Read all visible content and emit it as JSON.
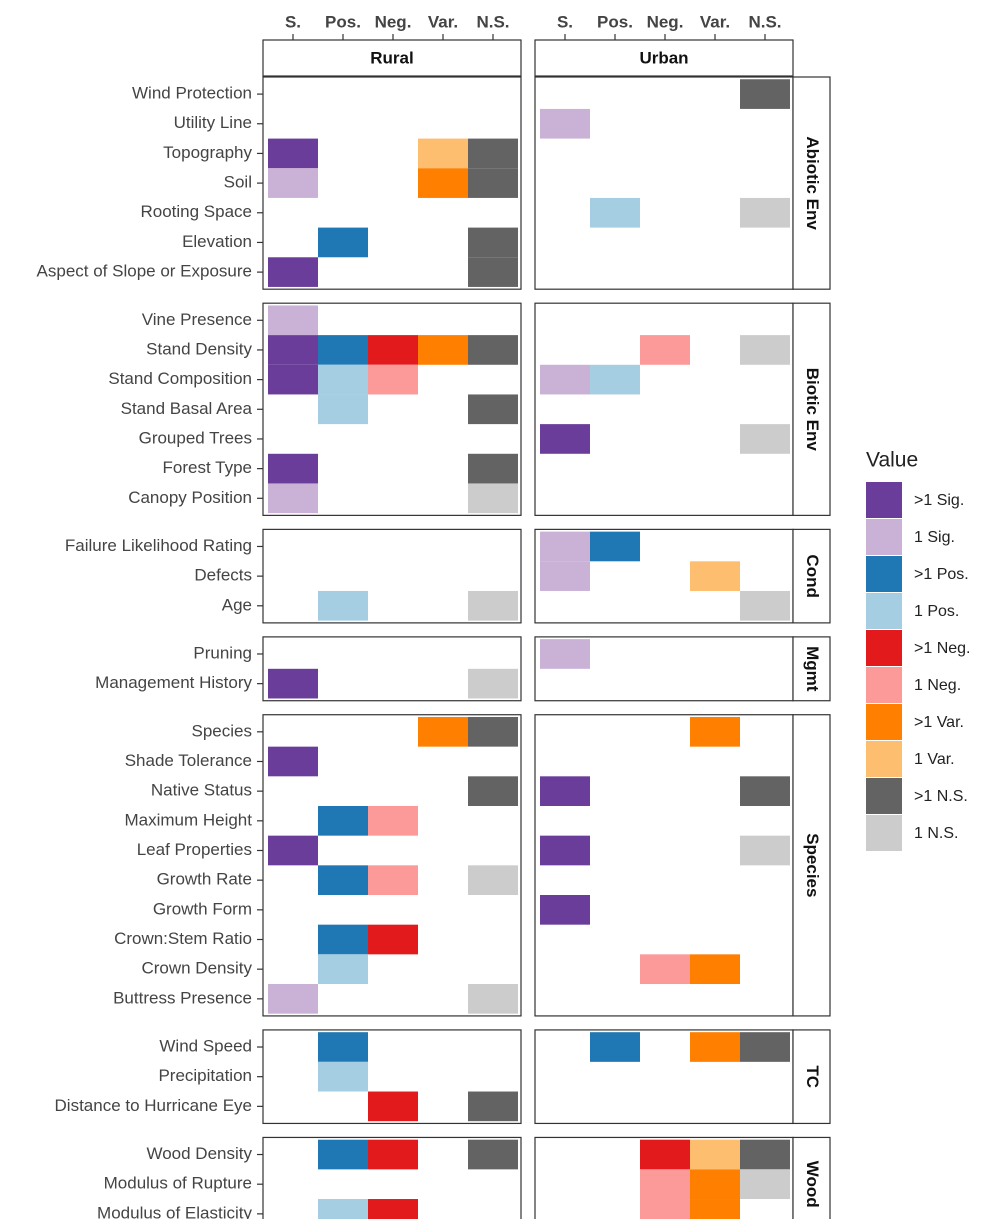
{
  "chart_data": {
    "type": "tile",
    "columns": [
      "S.",
      "Pos.",
      "Neg.",
      "Var.",
      "N.S."
    ],
    "facets": [
      "Rural",
      "Urban"
    ],
    "legend_title": "Value",
    "legend": [
      {
        "name": ">1 Sig.",
        "color": "#6a3d9a"
      },
      {
        "name": "1 Sig.",
        "color": "#cab2d6"
      },
      {
        "name": ">1 Pos.",
        "color": "#1f78b4"
      },
      {
        "name": "1 Pos.",
        "color": "#a6cee3"
      },
      {
        "name": ">1 Neg.",
        "color": "#e31a1c"
      },
      {
        "name": "1 Neg.",
        "color": "#fb9a99"
      },
      {
        "name": ">1 Var.",
        "color": "#ff7f00"
      },
      {
        "name": "1 Var.",
        "color": "#fdbf6f"
      },
      {
        "name": ">1 N.S.",
        "color": "#636363"
      },
      {
        "name": "1 N.S.",
        "color": "#cccccc"
      }
    ],
    "groups": [
      {
        "name": "Abiotic Env",
        "rows": [
          {
            "label": "Wind Protection",
            "cells": [
              [
                null,
                null,
                null,
                null,
                null
              ],
              [
                null,
                null,
                null,
                null,
                ">1 N.S."
              ]
            ]
          },
          {
            "label": "Utility Line",
            "cells": [
              [
                null,
                null,
                null,
                null,
                null
              ],
              [
                "1 Sig.",
                null,
                null,
                null,
                null
              ]
            ]
          },
          {
            "label": "Topography",
            "cells": [
              [
                ">1 Sig.",
                null,
                null,
                "1 Var.",
                ">1 N.S."
              ],
              [
                null,
                null,
                null,
                null,
                null
              ]
            ]
          },
          {
            "label": "Soil",
            "cells": [
              [
                "1 Sig.",
                null,
                null,
                ">1 Var.",
                ">1 N.S."
              ],
              [
                null,
                null,
                null,
                null,
                null
              ]
            ]
          },
          {
            "label": "Rooting Space",
            "cells": [
              [
                null,
                null,
                null,
                null,
                null
              ],
              [
                null,
                "1 Pos.",
                null,
                null,
                "1 N.S."
              ]
            ]
          },
          {
            "label": "Elevation",
            "cells": [
              [
                null,
                ">1 Pos.",
                null,
                null,
                ">1 N.S."
              ],
              [
                null,
                null,
                null,
                null,
                null
              ]
            ]
          },
          {
            "label": "Aspect of Slope or Exposure",
            "cells": [
              [
                ">1 Sig.",
                null,
                null,
                null,
                ">1 N.S."
              ],
              [
                null,
                null,
                null,
                null,
                null
              ]
            ]
          }
        ]
      },
      {
        "name": "Biotic Env",
        "rows": [
          {
            "label": "Vine Presence",
            "cells": [
              [
                "1 Sig.",
                null,
                null,
                null,
                null
              ],
              [
                null,
                null,
                null,
                null,
                null
              ]
            ]
          },
          {
            "label": "Stand Density",
            "cells": [
              [
                ">1 Sig.",
                ">1 Pos.",
                ">1 Neg.",
                ">1 Var.",
                ">1 N.S."
              ],
              [
                null,
                null,
                "1 Neg.",
                null,
                "1 N.S."
              ]
            ]
          },
          {
            "label": "Stand Composition",
            "cells": [
              [
                ">1 Sig.",
                "1 Pos.",
                "1 Neg.",
                null,
                null
              ],
              [
                "1 Sig.",
                "1 Pos.",
                null,
                null,
                null
              ]
            ]
          },
          {
            "label": "Stand Basal Area",
            "cells": [
              [
                null,
                "1 Pos.",
                null,
                null,
                ">1 N.S."
              ],
              [
                null,
                null,
                null,
                null,
                null
              ]
            ]
          },
          {
            "label": "Grouped Trees",
            "cells": [
              [
                null,
                null,
                null,
                null,
                null
              ],
              [
                ">1 Sig.",
                null,
                null,
                null,
                "1 N.S."
              ]
            ]
          },
          {
            "label": "Forest Type",
            "cells": [
              [
                ">1 Sig.",
                null,
                null,
                null,
                ">1 N.S."
              ],
              [
                null,
                null,
                null,
                null,
                null
              ]
            ]
          },
          {
            "label": "Canopy Position",
            "cells": [
              [
                "1 Sig.",
                null,
                null,
                null,
                "1 N.S."
              ],
              [
                null,
                null,
                null,
                null,
                null
              ]
            ]
          }
        ]
      },
      {
        "name": "Cond",
        "rows": [
          {
            "label": "Failure Likelihood Rating",
            "cells": [
              [
                null,
                null,
                null,
                null,
                null
              ],
              [
                "1 Sig.",
                ">1 Pos.",
                null,
                null,
                null
              ]
            ]
          },
          {
            "label": "Defects",
            "cells": [
              [
                null,
                null,
                null,
                null,
                null
              ],
              [
                "1 Sig.",
                null,
                null,
                "1 Var.",
                null
              ]
            ]
          },
          {
            "label": "Age",
            "cells": [
              [
                null,
                "1 Pos.",
                null,
                null,
                "1 N.S."
              ],
              [
                null,
                null,
                null,
                null,
                "1 N.S."
              ]
            ]
          }
        ]
      },
      {
        "name": "Mgmt",
        "rows": [
          {
            "label": "Pruning",
            "cells": [
              [
                null,
                null,
                null,
                null,
                null
              ],
              [
                "1 Sig.",
                null,
                null,
                null,
                null
              ]
            ]
          },
          {
            "label": "Management History",
            "cells": [
              [
                ">1 Sig.",
                null,
                null,
                null,
                "1 N.S."
              ],
              [
                null,
                null,
                null,
                null,
                null
              ]
            ]
          }
        ]
      },
      {
        "name": "Species",
        "rows": [
          {
            "label": "Species",
            "cells": [
              [
                null,
                null,
                null,
                ">1 Var.",
                ">1 N.S."
              ],
              [
                null,
                null,
                null,
                ">1 Var.",
                null
              ]
            ]
          },
          {
            "label": "Shade Tolerance",
            "cells": [
              [
                ">1 Sig.",
                null,
                null,
                null,
                null
              ],
              [
                null,
                null,
                null,
                null,
                null
              ]
            ]
          },
          {
            "label": "Native Status",
            "cells": [
              [
                null,
                null,
                null,
                null,
                ">1 N.S."
              ],
              [
                ">1 Sig.",
                null,
                null,
                null,
                ">1 N.S."
              ]
            ]
          },
          {
            "label": "Maximum Height",
            "cells": [
              [
                null,
                ">1 Pos.",
                "1 Neg.",
                null,
                null
              ],
              [
                null,
                null,
                null,
                null,
                null
              ]
            ]
          },
          {
            "label": "Leaf Properties",
            "cells": [
              [
                ">1 Sig.",
                null,
                null,
                null,
                null
              ],
              [
                ">1 Sig.",
                null,
                null,
                null,
                "1 N.S."
              ]
            ]
          },
          {
            "label": "Growth Rate",
            "cells": [
              [
                null,
                ">1 Pos.",
                "1 Neg.",
                null,
                "1 N.S."
              ],
              [
                null,
                null,
                null,
                null,
                null
              ]
            ]
          },
          {
            "label": "Growth Form",
            "cells": [
              [
                null,
                null,
                null,
                null,
                null
              ],
              [
                ">1 Sig.",
                null,
                null,
                null,
                null
              ]
            ]
          },
          {
            "label": "Crown:Stem Ratio",
            "cells": [
              [
                null,
                ">1 Pos.",
                ">1 Neg.",
                null,
                null
              ],
              [
                null,
                null,
                null,
                null,
                null
              ]
            ]
          },
          {
            "label": "Crown Density",
            "cells": [
              [
                null,
                "1 Pos.",
                null,
                null,
                null
              ],
              [
                null,
                null,
                "1 Neg.",
                ">1 Var.",
                null
              ]
            ]
          },
          {
            "label": "Buttress Presence",
            "cells": [
              [
                "1 Sig.",
                null,
                null,
                null,
                "1 N.S."
              ],
              [
                null,
                null,
                null,
                null,
                null
              ]
            ]
          }
        ]
      },
      {
        "name": "TC",
        "rows": [
          {
            "label": "Wind Speed",
            "cells": [
              [
                null,
                ">1 Pos.",
                null,
                null,
                null
              ],
              [
                null,
                ">1 Pos.",
                null,
                ">1 Var.",
                ">1 N.S."
              ]
            ]
          },
          {
            "label": "Precipitation",
            "cells": [
              [
                null,
                "1 Pos.",
                null,
                null,
                null
              ],
              [
                null,
                null,
                null,
                null,
                null
              ]
            ]
          },
          {
            "label": "Distance to Hurricane Eye",
            "cells": [
              [
                null,
                null,
                ">1 Neg.",
                null,
                ">1 N.S."
              ],
              [
                null,
                null,
                null,
                null,
                null
              ]
            ]
          }
        ]
      },
      {
        "name": "Wood",
        "rows": [
          {
            "label": "Wood Density",
            "cells": [
              [
                null,
                ">1 Pos.",
                ">1 Neg.",
                null,
                ">1 N.S."
              ],
              [
                null,
                null,
                ">1 Neg.",
                "1 Var.",
                ">1 N.S."
              ]
            ]
          },
          {
            "label": "Modulus of Rupture",
            "cells": [
              [
                null,
                null,
                null,
                null,
                null
              ],
              [
                null,
                null,
                "1 Neg.",
                ">1 Var.",
                "1 N.S."
              ]
            ]
          },
          {
            "label": "Modulus of Elasticity",
            "cells": [
              [
                null,
                "1 Pos.",
                ">1 Neg.",
                null,
                null
              ],
              [
                null,
                null,
                "1 Neg.",
                ">1 Var.",
                null
              ]
            ]
          }
        ]
      }
    ]
  }
}
